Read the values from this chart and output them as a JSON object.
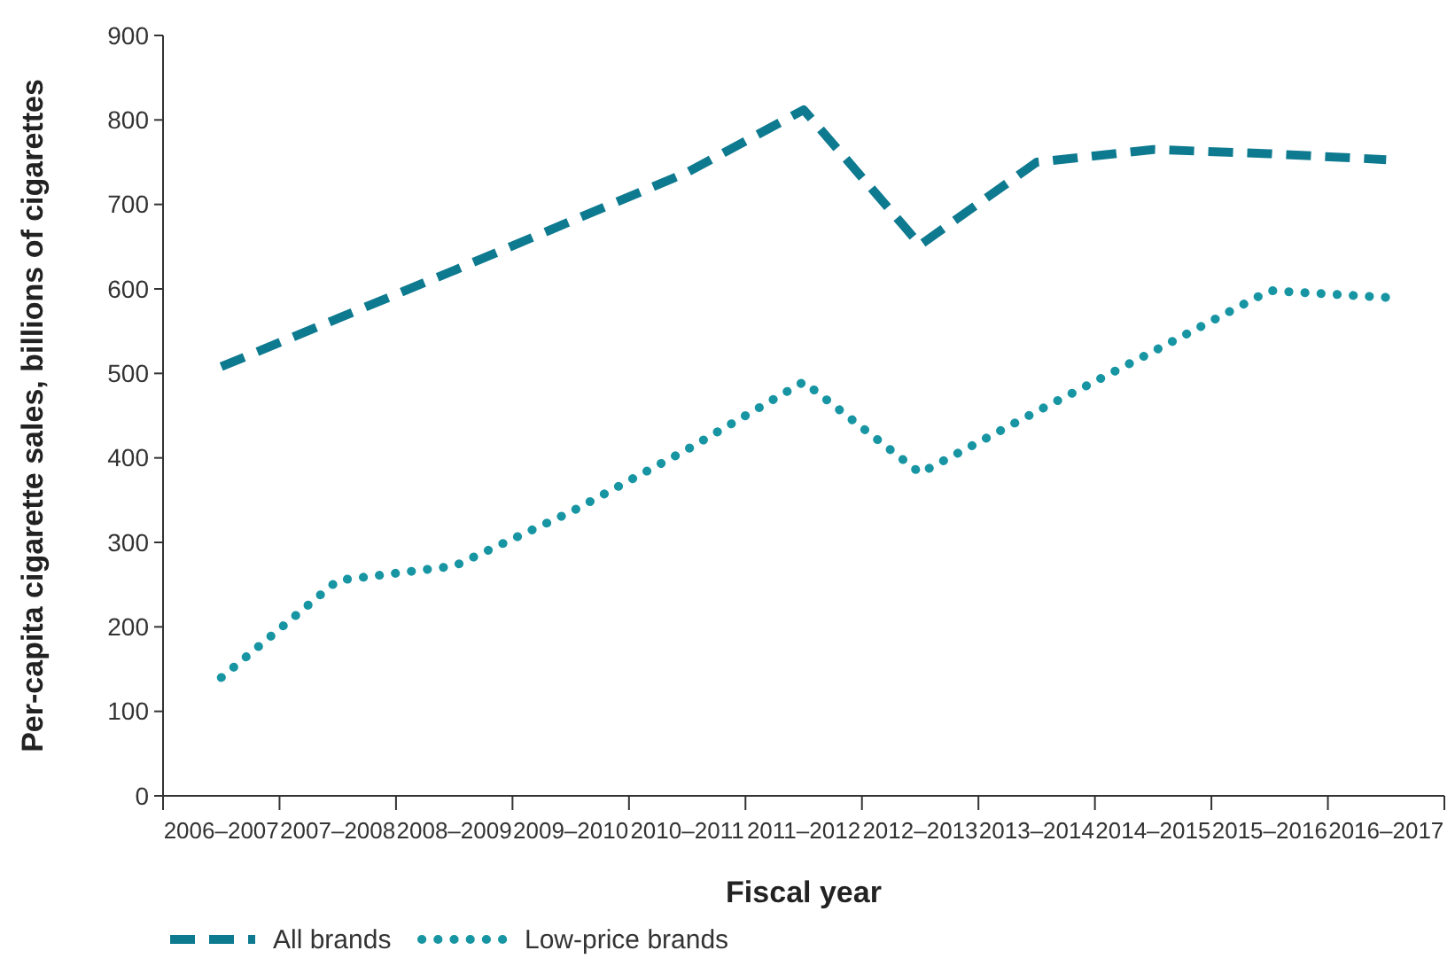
{
  "chart_data": {
    "type": "line",
    "xlabel": "Fiscal year",
    "ylabel": "Per-capita cigarette sales, billions of cigarettes",
    "categories": [
      "2006–2007",
      "2007–2008",
      "2008–2009",
      "2009–2010",
      "2010–2011",
      "2011–2012",
      "2012–2013",
      "2013–2014",
      "2014–2015",
      "2015–2016",
      "2016–2017"
    ],
    "series": [
      {
        "name": "All brands",
        "color": "#0e7a8f",
        "line_style": "dashed",
        "values": [
          508,
          565,
          622,
          680,
          738,
          812,
          652,
          750,
          765,
          760,
          753
        ]
      },
      {
        "name": "Low-price brands",
        "color": "#1795a3",
        "line_style": "dotted",
        "values": [
          140,
          255,
          272,
          336,
          410,
          490,
          382,
          455,
          526,
          598,
          590
        ]
      }
    ],
    "ylim": [
      0,
      900
    ],
    "yticks": [
      0,
      100,
      200,
      300,
      400,
      500,
      600,
      700,
      800,
      900
    ],
    "grid": false,
    "legend": "bottom left",
    "marker": "none"
  }
}
